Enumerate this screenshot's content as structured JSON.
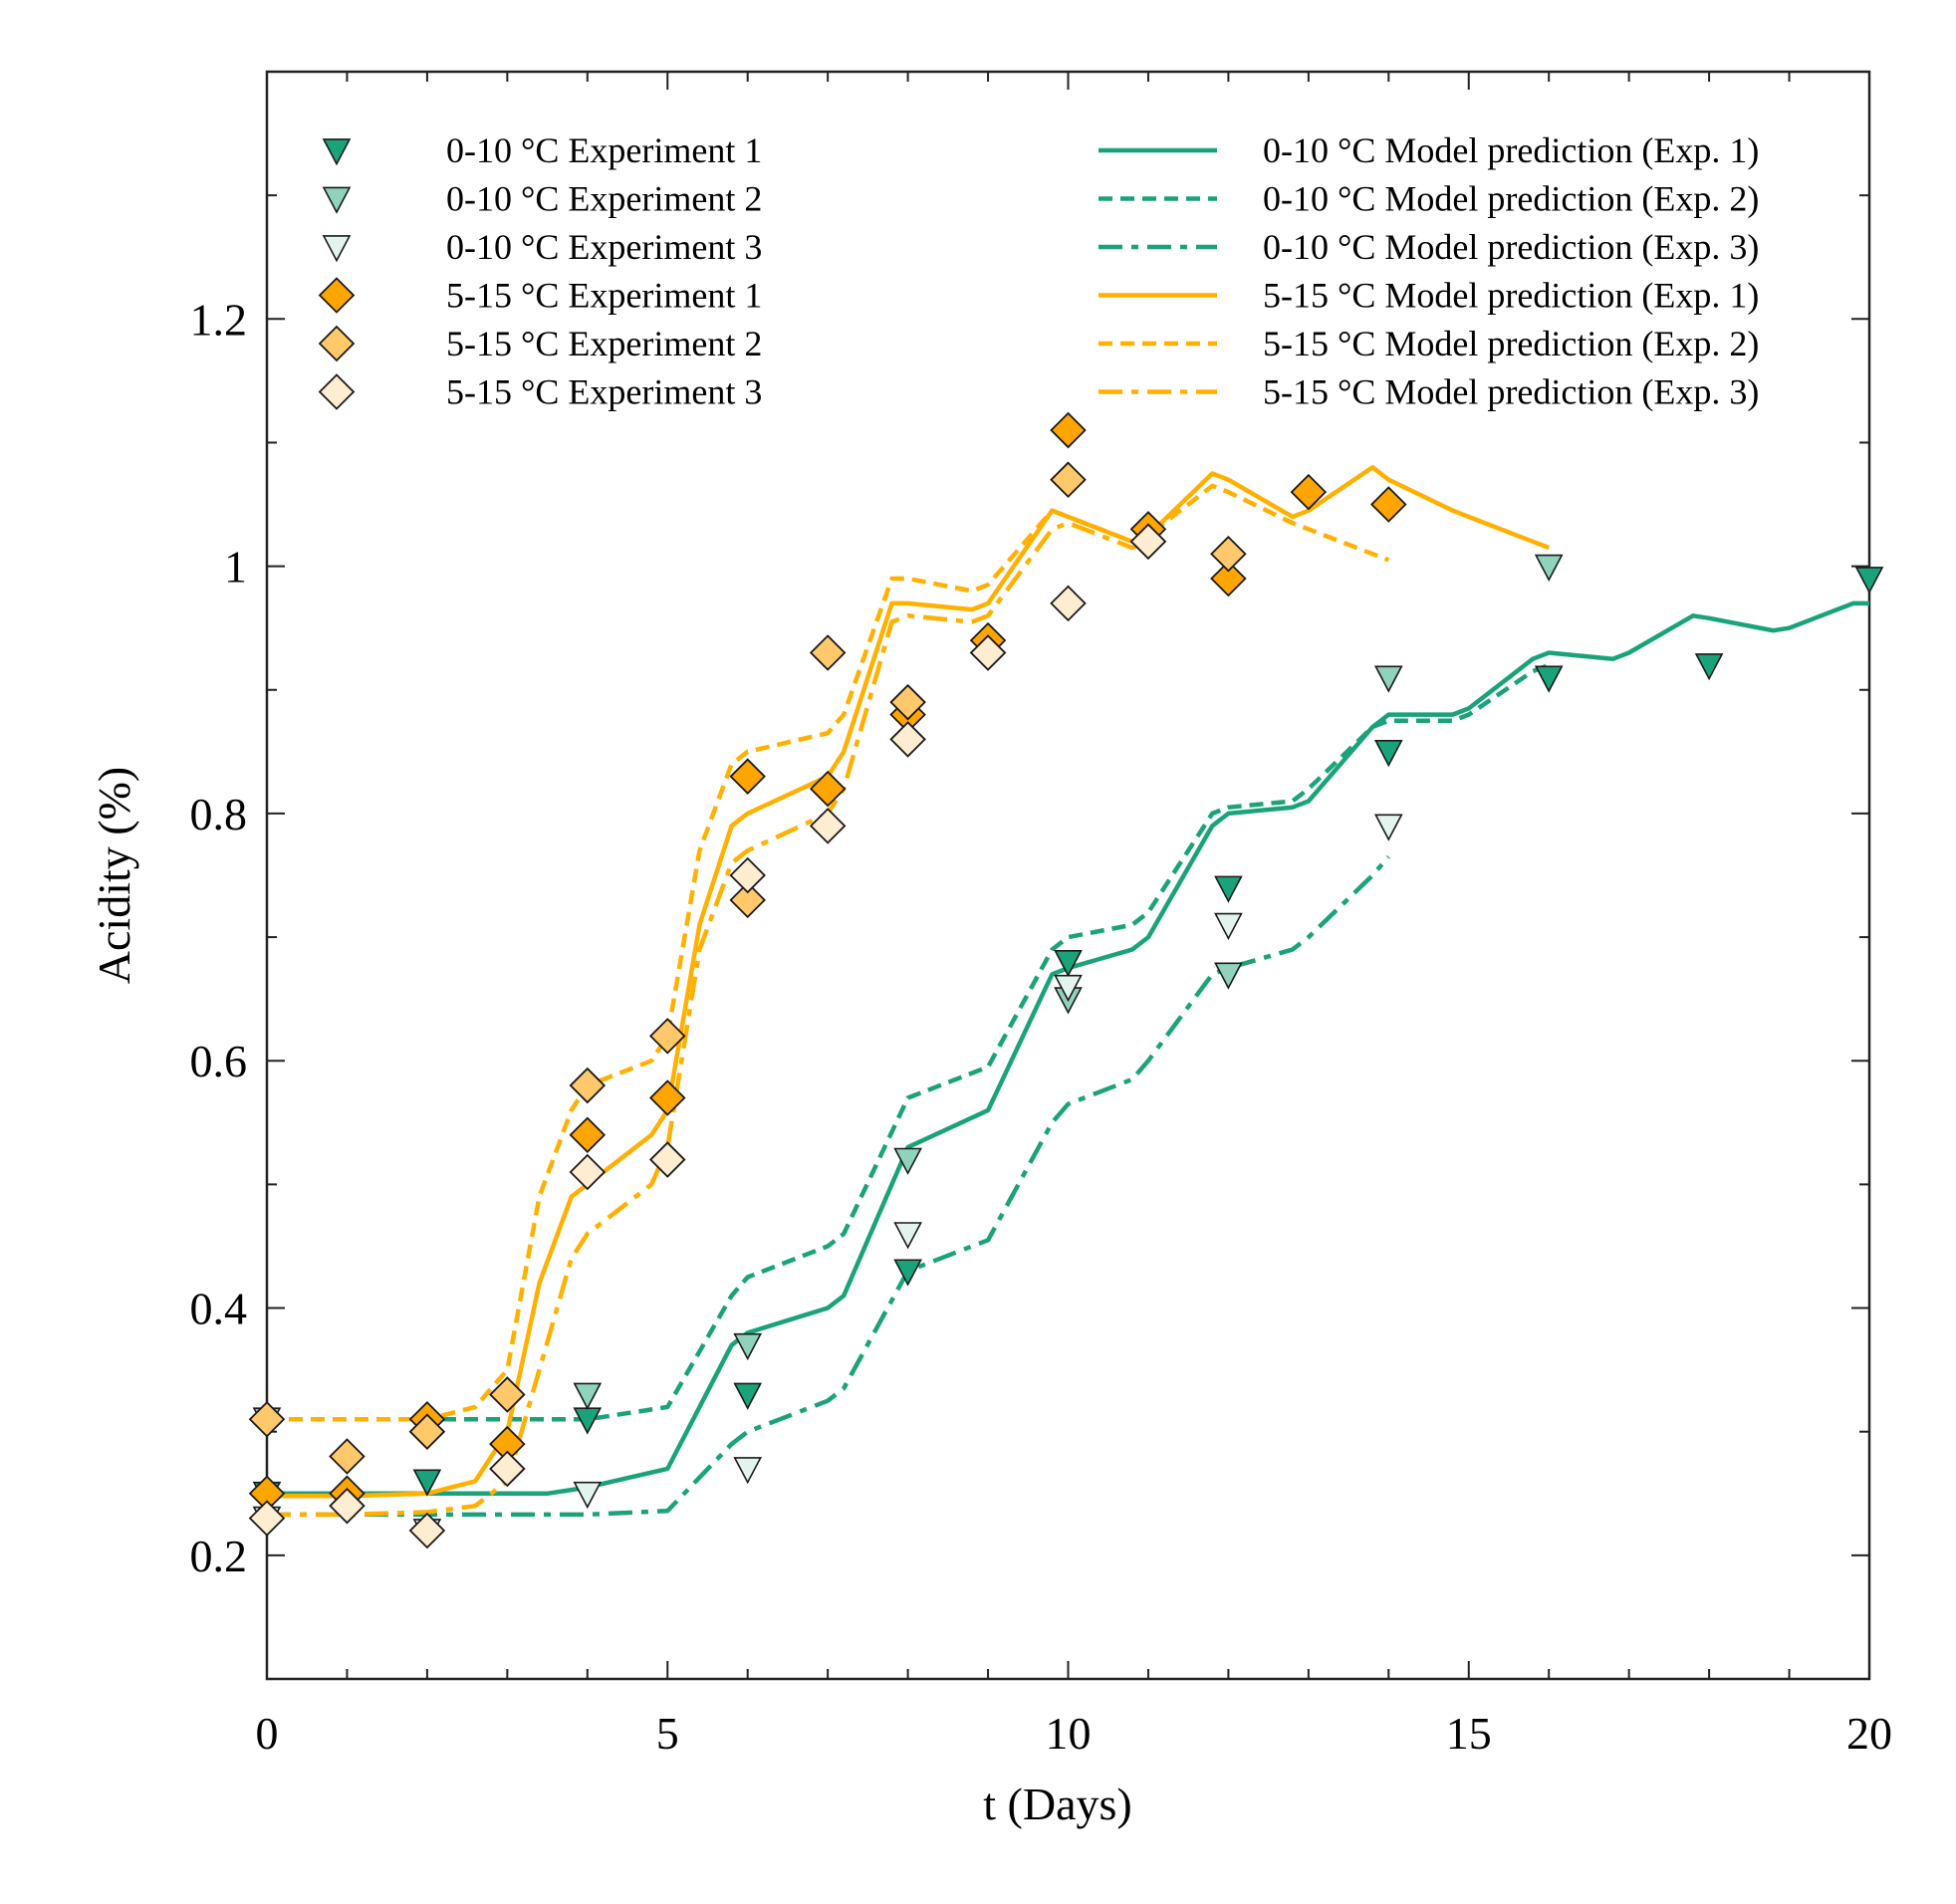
{
  "colors": {
    "green_dark": "#1aa37a",
    "green_mid": "#8fd3bd",
    "green_light": "#e3f4ee",
    "orange_dark": "#ffa500",
    "orange_mid": "#ffc86a",
    "orange_light": "#ffedd2",
    "green_line": "#1aa37a",
    "orange_line": "#ffb000"
  },
  "chart_data": {
    "type": "line",
    "xlabel": "t (Days)",
    "ylabel": "Acidity (%)",
    "xlim": [
      0,
      20
    ],
    "ylim": [
      0.1,
      1.4
    ],
    "xticks": [
      0,
      5,
      10,
      15,
      20
    ],
    "xtick_labels": [
      "0",
      "5",
      "10",
      "15",
      "20"
    ],
    "yticks": [
      0.2,
      0.4,
      0.6,
      0.8,
      1.0,
      1.2
    ],
    "ytick_labels": [
      "0.2",
      "0.4",
      "0.6",
      "0.8",
      "1",
      "1.2"
    ],
    "legend_position": "top",
    "markers": [
      {
        "name": "0-10 °C Experiment 1",
        "shape": "triangle",
        "color": "green_dark",
        "x": [
          0,
          2,
          4,
          6,
          8,
          10,
          12,
          14,
          16,
          18,
          20
        ],
        "y": [
          0.25,
          0.26,
          0.31,
          0.33,
          0.43,
          0.68,
          0.74,
          0.85,
          0.91,
          0.92,
          0.99
        ]
      },
      {
        "name": "0-10 °C Experiment 2",
        "shape": "triangle",
        "color": "green_mid",
        "x": [
          0,
          2,
          4,
          6,
          8,
          10,
          12,
          14,
          16
        ],
        "y": [
          0.31,
          0.3,
          0.33,
          0.37,
          0.52,
          0.65,
          0.67,
          0.91,
          1.0
        ]
      },
      {
        "name": "0-10 °C Experiment 3",
        "shape": "triangle",
        "color": "green_light",
        "x": [
          0,
          2,
          4,
          6,
          8,
          10,
          12,
          14
        ],
        "y": [
          0.23,
          0.22,
          0.25,
          0.27,
          0.46,
          0.66,
          0.71,
          0.79
        ]
      },
      {
        "name": "5-15 °C Experiment 1",
        "shape": "diamond",
        "color": "orange_dark",
        "x": [
          0,
          1,
          2,
          3,
          4,
          5,
          6,
          7,
          8,
          9,
          10,
          11,
          12,
          13,
          14
        ],
        "y": [
          0.25,
          0.25,
          0.31,
          0.29,
          0.54,
          0.57,
          0.83,
          0.82,
          0.88,
          0.94,
          1.11,
          1.03,
          0.99,
          1.06,
          1.05
        ]
      },
      {
        "name": "5-15 °C Experiment 2",
        "shape": "diamond",
        "color": "orange_mid",
        "x": [
          0,
          1,
          2,
          3,
          4,
          5,
          6,
          7,
          8,
          9,
          10,
          11,
          12
        ],
        "y": [
          0.31,
          0.28,
          0.3,
          0.33,
          0.58,
          0.62,
          0.73,
          0.93,
          0.89,
          0.93,
          1.07,
          1.02,
          1.01
        ]
      },
      {
        "name": "5-15 °C Experiment 3",
        "shape": "diamond",
        "color": "orange_light",
        "x": [
          0,
          1,
          2,
          3,
          4,
          5,
          6,
          7,
          8,
          9,
          10,
          11
        ],
        "y": [
          0.23,
          0.24,
          0.22,
          0.27,
          0.51,
          0.52,
          0.75,
          0.79,
          0.86,
          0.93,
          0.97,
          1.02
        ]
      }
    ],
    "lines": [
      {
        "name": "0-10 °C Model prediction (Exp. 1)",
        "style": "solid",
        "color": "green_line",
        "x": [
          0,
          2,
          3.5,
          4,
          5,
          5.8,
          6,
          7,
          7.2,
          8,
          9,
          9.8,
          10,
          10.8,
          11,
          11.8,
          12,
          12.8,
          13,
          13.8,
          14,
          14.8,
          15,
          15.8,
          16,
          16.8,
          17,
          17.8,
          18,
          18.8,
          19,
          19.8,
          20
        ],
        "y": [
          0.25,
          0.25,
          0.25,
          0.255,
          0.27,
          0.37,
          0.38,
          0.4,
          0.41,
          0.53,
          0.56,
          0.67,
          0.675,
          0.69,
          0.7,
          0.79,
          0.8,
          0.805,
          0.81,
          0.87,
          0.88,
          0.88,
          0.885,
          0.925,
          0.93,
          0.925,
          0.93,
          0.96,
          0.958,
          0.948,
          0.95,
          0.97,
          0.97
        ]
      },
      {
        "name": "0-10 °C Model prediction (Exp. 2)",
        "style": "dashed",
        "color": "green_line",
        "x": [
          0,
          2,
          4,
          5,
          5.8,
          6,
          7,
          7.2,
          8,
          9,
          9.8,
          10,
          10.8,
          11,
          11.8,
          12,
          12.8,
          13,
          13.8,
          14,
          14.8,
          15,
          15.8,
          16
        ],
        "y": [
          0.31,
          0.31,
          0.31,
          0.32,
          0.41,
          0.425,
          0.45,
          0.46,
          0.57,
          0.595,
          0.69,
          0.7,
          0.71,
          0.72,
          0.8,
          0.805,
          0.81,
          0.82,
          0.87,
          0.875,
          0.875,
          0.88,
          0.915,
          0.92
        ]
      },
      {
        "name": "0-10 °C Model prediction (Exp. 3)",
        "style": "dashdot",
        "color": "green_line",
        "x": [
          0,
          2,
          4,
          5,
          5.8,
          6,
          7,
          7.2,
          8,
          9,
          9.8,
          10,
          10.8,
          11,
          11.8,
          12,
          12.8,
          13,
          13.8,
          14
        ],
        "y": [
          0.233,
          0.233,
          0.233,
          0.236,
          0.29,
          0.3,
          0.325,
          0.335,
          0.43,
          0.455,
          0.55,
          0.565,
          0.585,
          0.6,
          0.67,
          0.675,
          0.69,
          0.7,
          0.75,
          0.765
        ]
      },
      {
        "name": "5-15 °C Model prediction (Exp. 1)",
        "style": "solid",
        "color": "orange_line",
        "x": [
          0,
          1,
          2,
          2.6,
          3,
          3.4,
          3.8,
          4,
          4.8,
          5,
          5.4,
          5.8,
          6,
          7,
          7.2,
          7.8,
          8,
          8.8,
          9,
          9.8,
          10,
          10.8,
          11,
          11.8,
          12,
          12.8,
          13,
          13.8,
          14,
          14.8,
          15,
          15.8,
          16
        ],
        "y": [
          0.248,
          0.248,
          0.25,
          0.26,
          0.3,
          0.42,
          0.49,
          0.5,
          0.54,
          0.56,
          0.71,
          0.79,
          0.8,
          0.83,
          0.85,
          0.97,
          0.97,
          0.965,
          0.97,
          1.045,
          1.04,
          1.02,
          1.025,
          1.075,
          1.07,
          1.04,
          1.045,
          1.08,
          1.07,
          1.045,
          1.04,
          1.02,
          1.015
        ]
      },
      {
        "name": "5-15 °C Model prediction (Exp. 2)",
        "style": "dashed",
        "color": "orange_line",
        "x": [
          0,
          1,
          2,
          2.6,
          3,
          3.4,
          3.8,
          4,
          4.8,
          5,
          5.4,
          5.8,
          6,
          7,
          7.2,
          7.8,
          8,
          8.8,
          9,
          9.8,
          10,
          10.8,
          11,
          11.8,
          12,
          12.8,
          13,
          13.8,
          14
        ],
        "y": [
          0.31,
          0.31,
          0.31,
          0.32,
          0.35,
          0.49,
          0.56,
          0.58,
          0.6,
          0.62,
          0.77,
          0.84,
          0.85,
          0.865,
          0.88,
          0.99,
          0.99,
          0.98,
          0.985,
          1.045,
          1.04,
          1.02,
          1.025,
          1.065,
          1.06,
          1.035,
          1.03,
          1.01,
          1.005
        ]
      },
      {
        "name": "5-15 °C Model prediction (Exp. 3)",
        "style": "dashdot",
        "color": "orange_line",
        "x": [
          0,
          1,
          2,
          2.6,
          3,
          3.4,
          3.8,
          4,
          4.8,
          5,
          5.4,
          5.8,
          6,
          7,
          7.2,
          7.8,
          8,
          8.8,
          9,
          9.8,
          10,
          10.8,
          11
        ],
        "y": [
          0.233,
          0.233,
          0.235,
          0.24,
          0.26,
          0.35,
          0.44,
          0.46,
          0.5,
          0.53,
          0.69,
          0.76,
          0.77,
          0.8,
          0.82,
          0.955,
          0.96,
          0.955,
          0.96,
          1.03,
          1.035,
          1.015,
          1.02
        ]
      }
    ]
  }
}
